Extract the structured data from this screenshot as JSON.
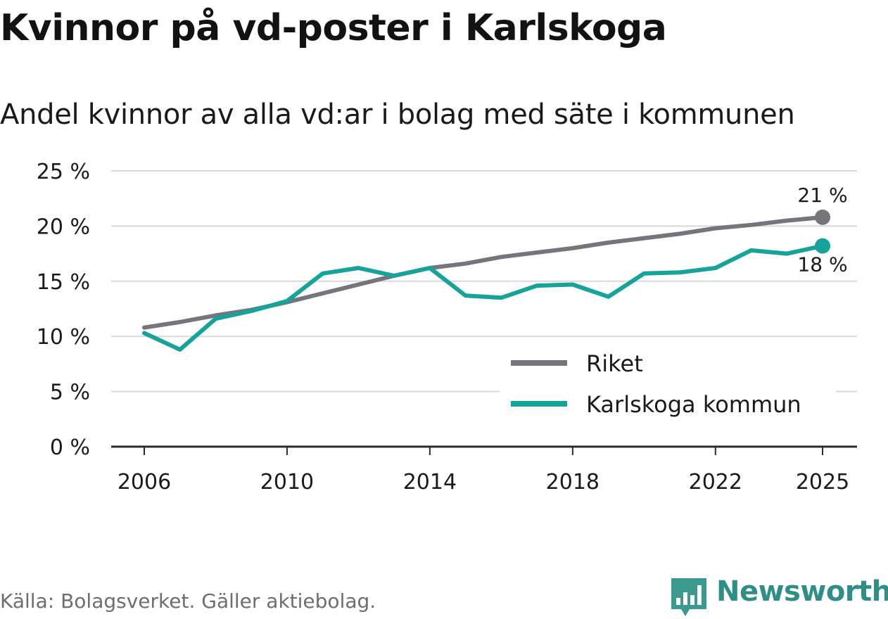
{
  "title": "Kvinnor på vd-poster i Karlskoga",
  "subtitle": "Andel kvinnor av alla vd:ar i bolag med säte i kommunen",
  "source": "Källa: Bolagsverket. Gäller aktiebolag.",
  "brand": {
    "name": "Newsworthy",
    "logo": "bar-chart-icon",
    "color": "#3a9a8f"
  },
  "chart_data": {
    "type": "line",
    "title": "Kvinnor på vd-poster i Karlskoga",
    "subtitle": "Andel kvinnor av alla vd:ar i bolag med säte i kommunen",
    "xlabel": "",
    "ylabel": "",
    "x": [
      2006,
      2007,
      2008,
      2009,
      2010,
      2011,
      2012,
      2013,
      2014,
      2015,
      2016,
      2017,
      2018,
      2019,
      2020,
      2021,
      2022,
      2023,
      2024,
      2025
    ],
    "x_ticks": [
      2006,
      2010,
      2014,
      2018,
      2022,
      2025
    ],
    "x_tick_labels": [
      "2006",
      "2010",
      "2014",
      "2018",
      "2022",
      "2025"
    ],
    "ylim": [
      0,
      25
    ],
    "y_ticks": [
      0,
      5,
      10,
      15,
      20,
      25
    ],
    "y_tick_labels": [
      "0 %",
      "5 %",
      "10 %",
      "15 %",
      "20 %",
      "25 %"
    ],
    "grid": true,
    "legend_position": "bottom-right",
    "series": [
      {
        "name": "Riket",
        "color": "#76757c",
        "values": [
          10.8,
          11.3,
          11.9,
          12.4,
          13.1,
          13.9,
          14.7,
          15.5,
          16.2,
          16.6,
          17.2,
          17.6,
          18.0,
          18.5,
          18.9,
          19.3,
          19.8,
          20.1,
          20.5,
          20.8
        ],
        "end_label": "21 %"
      },
      {
        "name": "Karlskoga kommun",
        "color": "#16a39a",
        "values": [
          10.3,
          8.8,
          11.6,
          12.3,
          13.2,
          15.7,
          16.2,
          15.5,
          16.2,
          13.7,
          13.5,
          14.6,
          14.7,
          13.6,
          15.7,
          15.8,
          16.2,
          17.8,
          17.5,
          18.2
        ],
        "end_label": "18 %"
      }
    ]
  }
}
